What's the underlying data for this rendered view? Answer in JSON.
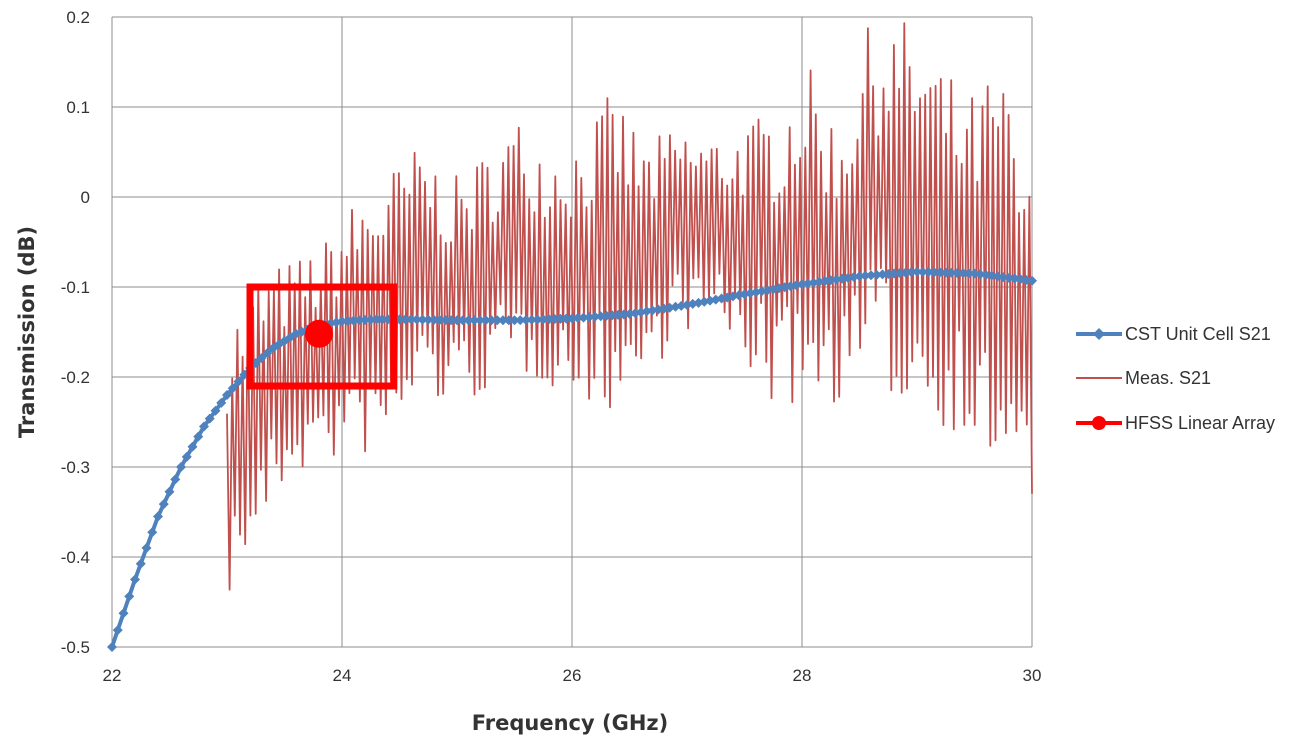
{
  "chart_data": {
    "type": "line",
    "xlabel": "Frequency (GHz)",
    "ylabel": "Transmission (dB)",
    "xlim": [
      22,
      30
    ],
    "ylim": [
      -0.5,
      0.2
    ],
    "x_ticks": [
      "22",
      "24",
      "26",
      "28",
      "30"
    ],
    "y_ticks": [
      "0.2",
      "0.1",
      "0",
      "-0.1",
      "-0.2",
      "-0.3",
      "-0.4",
      "-0.5"
    ],
    "grid": true,
    "legend_position": "right",
    "series": [
      {
        "name": "CST Unit Cell S21",
        "color": "#4f81bd",
        "marker": "diamond",
        "x": [
          22.0,
          22.2,
          22.4,
          22.6,
          22.8,
          23.0,
          23.2,
          23.4,
          23.6,
          23.8,
          24.0,
          24.3,
          24.6,
          25.0,
          25.5,
          26.0,
          26.5,
          27.0,
          27.5,
          28.0,
          28.5,
          29.0,
          29.5,
          30.0
        ],
        "y": [
          -0.5,
          -0.425,
          -0.355,
          -0.3,
          -0.255,
          -0.22,
          -0.19,
          -0.168,
          -0.152,
          -0.143,
          -0.138,
          -0.136,
          -0.136,
          -0.137,
          -0.137,
          -0.135,
          -0.13,
          -0.12,
          -0.108,
          -0.097,
          -0.088,
          -0.083,
          -0.085,
          -0.093
        ]
      },
      {
        "name": "Meas. S21",
        "color": "#c0504d",
        "x_start": 23.0,
        "x_end": 30.0,
        "points": 310,
        "min_values": [
          -0.45,
          -0.38,
          -0.31,
          -0.3,
          -0.29,
          -0.29,
          -0.22,
          -0.24,
          -0.22,
          -0.2,
          -0.21,
          -0.23,
          -0.24,
          -0.21,
          -0.15,
          -0.15,
          -0.18,
          -0.24,
          -0.23,
          -0.23,
          -0.2,
          -0.24,
          -0.25,
          -0.27,
          -0.32,
          -0.35
        ],
        "max_values": [
          -0.14,
          -0.08,
          -0.07,
          -0.05,
          0.0,
          0.03,
          0.06,
          0.02,
          0.05,
          0.09,
          0.06,
          0.07,
          0.12,
          0.06,
          0.08,
          0.07,
          0.08,
          0.1,
          0.15,
          0.08,
          0.2,
          0.2,
          0.16,
          0.11,
          0.15,
          0.0
        ]
      },
      {
        "name": "HFSS Linear Array",
        "color": "#ff0000",
        "marker": "circle",
        "x": [
          23.8
        ],
        "y": [
          -0.152
        ]
      }
    ],
    "annotations": [
      {
        "type": "rectangle",
        "color": "#ff0000",
        "x_range": [
          23.2,
          24.45
        ],
        "y_range": [
          -0.21,
          -0.1
        ]
      }
    ]
  }
}
